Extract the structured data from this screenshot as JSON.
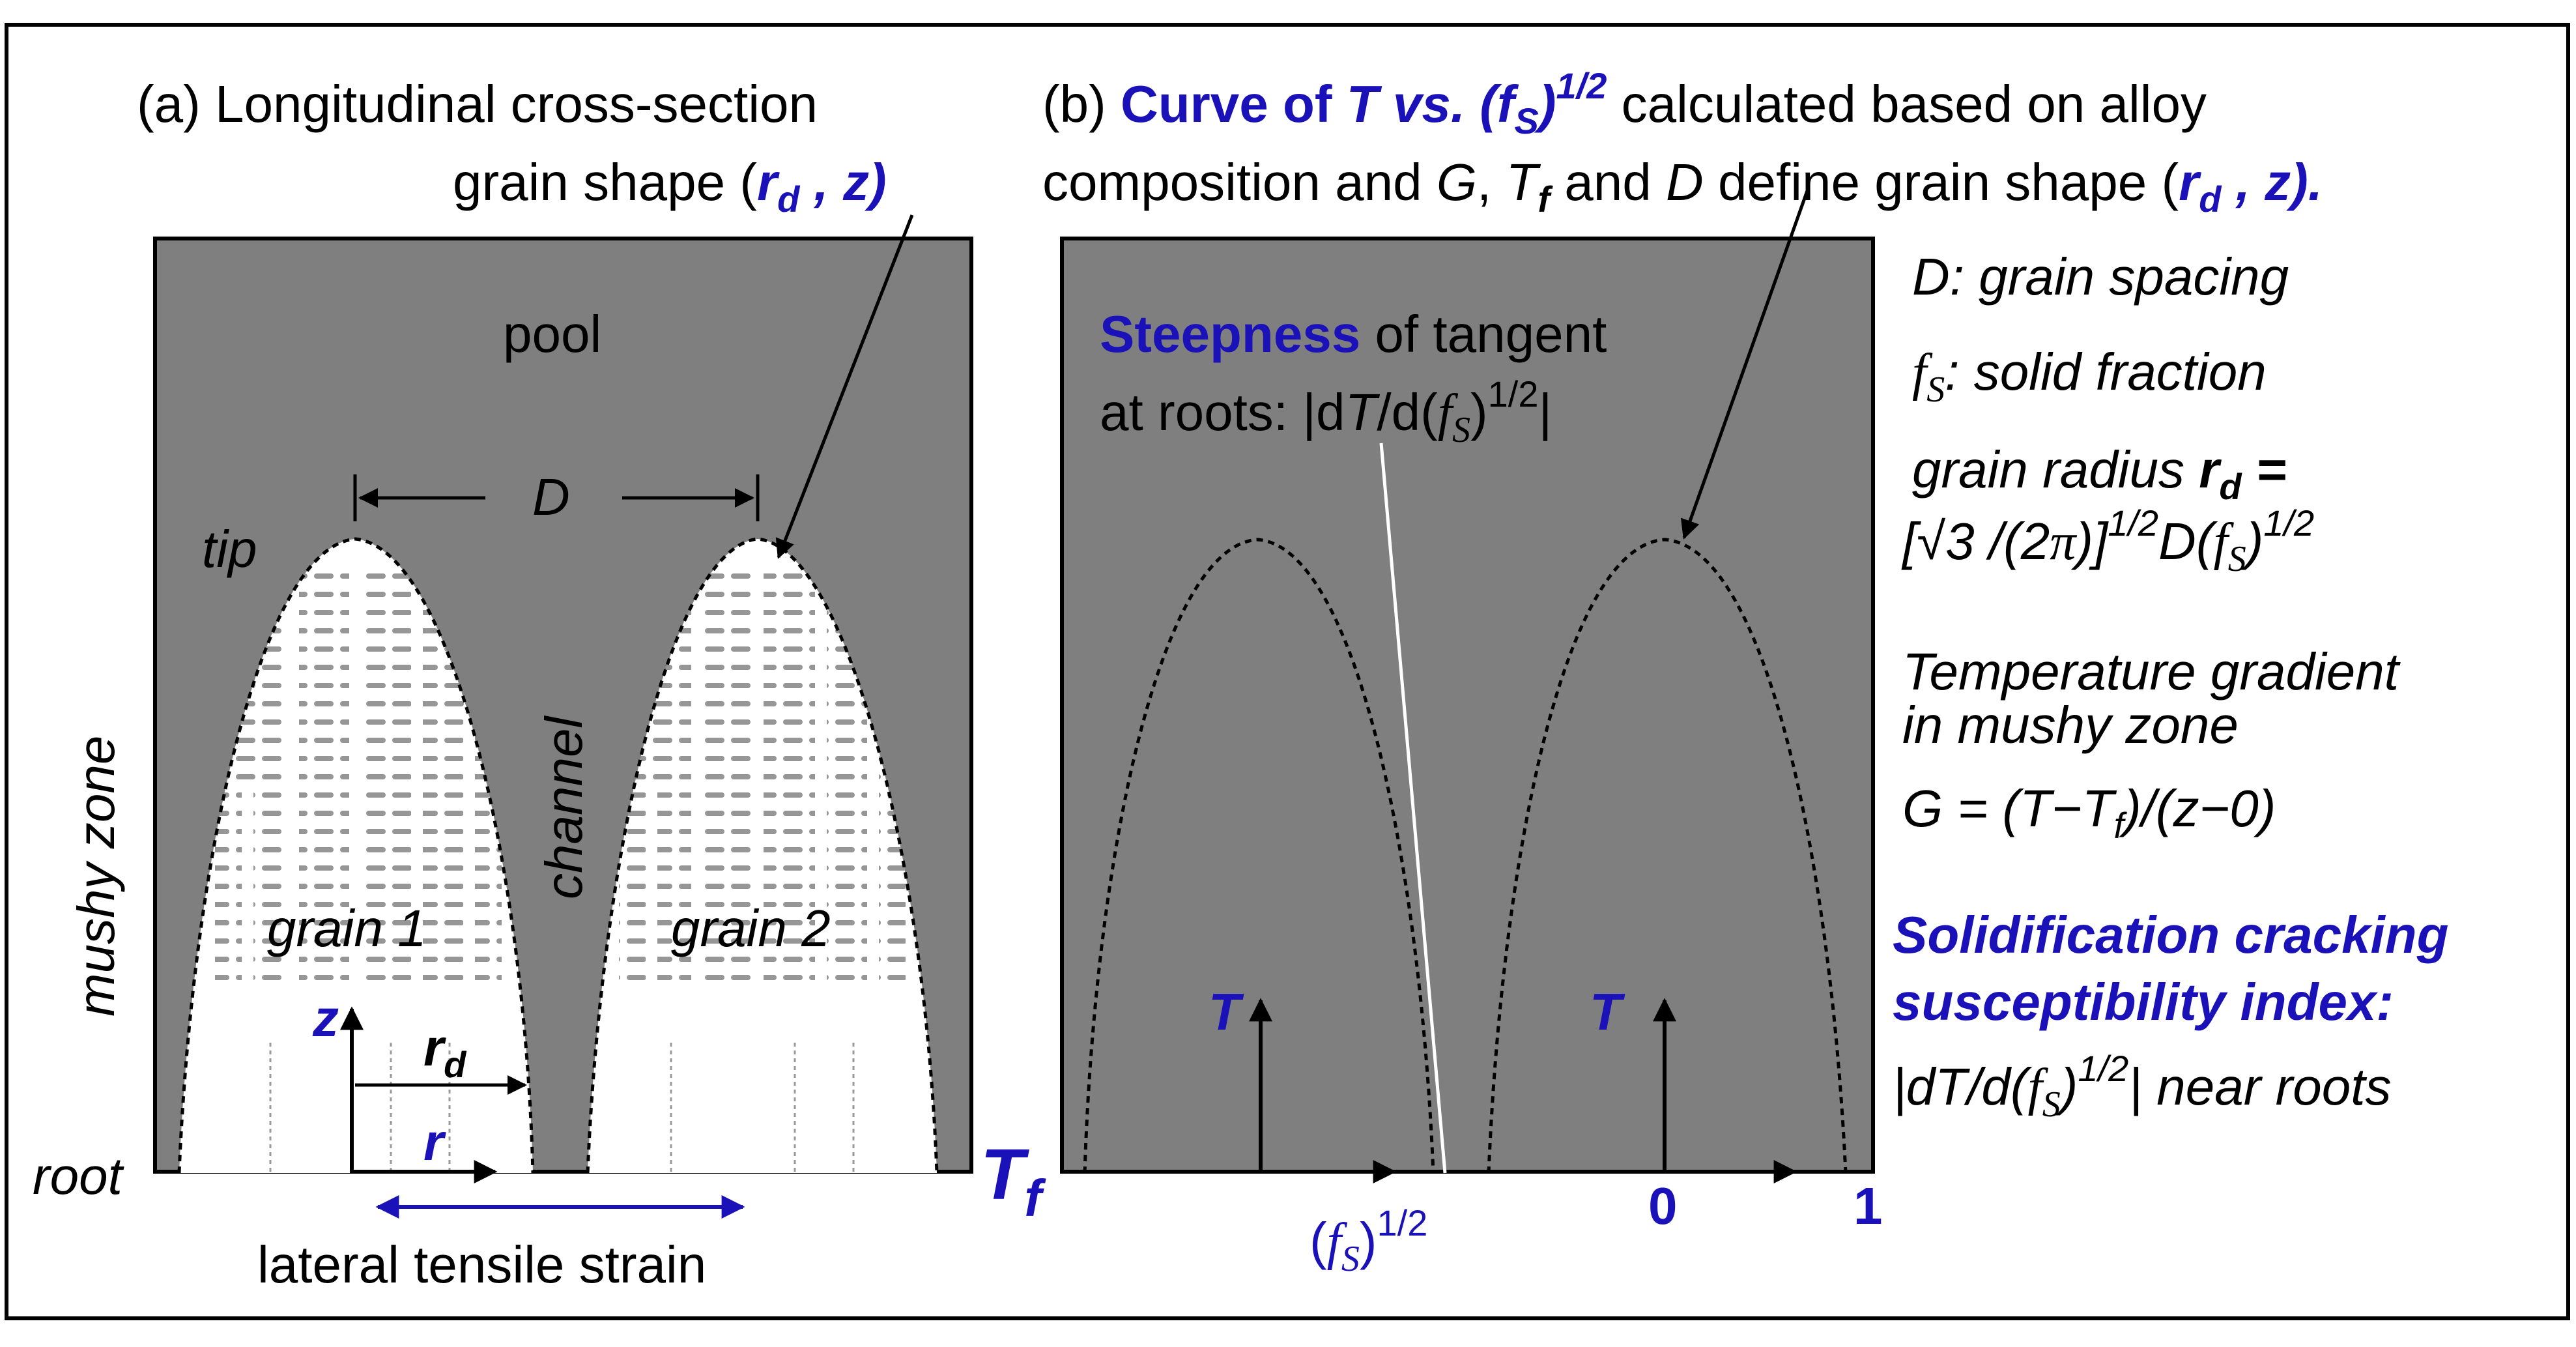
{
  "panel_a": {
    "caption_line1": "(a) Longitudinal cross-section",
    "caption_line2": "grain shape (",
    "caption_rd": "r",
    "caption_rd_sub": "d",
    "caption_z": " , z)",
    "pool": "pool",
    "tip": "tip",
    "D": "D",
    "mushy_zone": "mushy zone",
    "channel": "channel",
    "grain1": "grain 1",
    "grain2": "grain 2",
    "z_axis": "z",
    "rd": "r",
    "rd_sub": "d",
    "r_axis": "r",
    "root": "root",
    "strain": "lateral tensile strain"
  },
  "panel_b": {
    "caption_prefix": "(b) ",
    "caption_curve": "Curve of ",
    "caption_T": "T",
    "caption_vs": " vs. (",
    "caption_f": "f",
    "caption_S": "S",
    "caption_close": ")",
    "caption_exp": "1/2",
    "caption_rest1": " calculated based on alloy",
    "caption_line2a": "composition and ",
    "caption_G": "G",
    "caption_comma": ", ",
    "caption_Tf_T": "T",
    "caption_Tf_f": "f",
    "caption_and": " and ",
    "caption_D": "D",
    "caption_define": " define grain shape (",
    "caption_rd": "r",
    "caption_rd_sub": "d",
    "caption_z": " , z).",
    "steepness": "Steepness",
    "steepness_rest": " of tangent",
    "at_roots": "at roots:  |d",
    "at_roots_T": "T",
    "at_roots_mid": "/d(",
    "at_roots_f": "f",
    "at_roots_S": "S",
    "at_roots_close": ")",
    "at_roots_exp": "1/2",
    "at_roots_bar": "|",
    "T_left": "T",
    "T_right": "T",
    "Tf_T": "T",
    "Tf_f": "f",
    "fs_open": "(",
    "fs_f": "f",
    "fs_S": "S",
    "fs_close": ")",
    "fs_exp": "1/2",
    "zero": "0",
    "one": "1"
  },
  "side_notes": {
    "D_def": "D: grain spacing",
    "fs_f": "f",
    "fs_S": "S",
    "fs_def": ": solid fraction",
    "radius_line1": "grain radius ",
    "radius_r": "r",
    "radius_d": "d",
    "radius_eq": " =",
    "radius_line2a": "[",
    "radius_sqrt": "√",
    "radius_3": "3",
    "radius_line2b": " /(2",
    "radius_pi": "π",
    "radius_line2c": ")]",
    "radius_exp1": "1/2",
    "radius_D": "D(",
    "radius_f": "f",
    "radius_S": "S",
    "radius_close": ")",
    "radius_exp2": "1/2",
    "temp_line1": "Temperature gradient",
    "temp_line2": "in mushy zone",
    "G_eq": "G = (T−T",
    "G_f": "f",
    "G_rest": ")/(z−0)",
    "crack_line1": "Solidification cracking",
    "crack_line2": "susceptibility index:",
    "idx_a": "|dT/d(",
    "idx_f": "f",
    "idx_S": "S",
    "idx_close": ")",
    "idx_exp": "1/2",
    "idx_rest": "| near roots"
  },
  "colors": {
    "panel_fill": "#7f7f7f",
    "grain_fill": "#ffffff",
    "accent_blue": "#1a12b8",
    "line": "#000000"
  }
}
